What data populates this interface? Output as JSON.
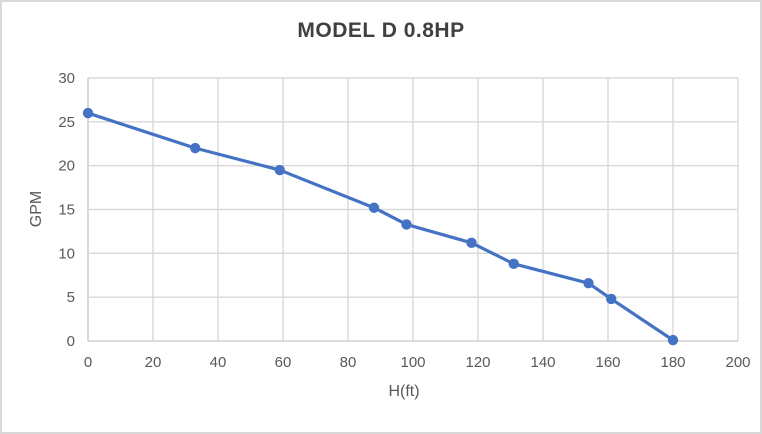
{
  "frame": {
    "background": "#FFFFFF",
    "border_color": "#D9D9D9"
  },
  "chart_data": {
    "type": "line",
    "title": "MODEL D 0.8HP",
    "xlabel": "H(ft)",
    "ylabel": "GPM",
    "series": [
      {
        "name": "pump-curve",
        "x": [
          0,
          33,
          59,
          88,
          98,
          118,
          131,
          154,
          161,
          180
        ],
        "y": [
          26,
          22,
          19.5,
          15.2,
          13.3,
          11.2,
          8.8,
          6.6,
          4.8,
          0.1
        ],
        "color": "#4472C4",
        "marker": "circle",
        "marker_radius": 5.2,
        "line_width": 3.2
      }
    ],
    "xlim": [
      0,
      200
    ],
    "xtick_step": 20,
    "xticks": [
      0,
      20,
      40,
      60,
      80,
      100,
      120,
      140,
      160,
      180,
      200
    ],
    "ylim": [
      0,
      30
    ],
    "ytick_step": 5,
    "yticks": [
      0,
      5,
      10,
      15,
      20,
      25,
      30
    ],
    "grid": true,
    "legend": false,
    "colors": {
      "gridline": "#D9D9D9",
      "axis_line": "#CFCFCF",
      "tick_label": "#595959",
      "axis_title": "#595959",
      "title": "#404040",
      "plot_background": "#FFFFFF"
    }
  }
}
